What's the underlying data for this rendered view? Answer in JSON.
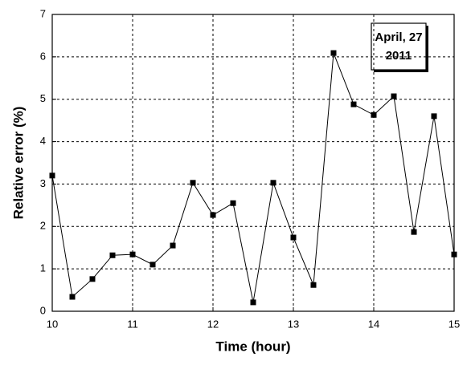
{
  "chart_data": {
    "type": "line",
    "xlabel": "Time (hour)",
    "ylabel": "Relative error (%)",
    "annotation": [
      "April, 27",
      "2011"
    ],
    "x": [
      10,
      10.25,
      10.5,
      10.75,
      11,
      11.25,
      11.5,
      11.75,
      12,
      12.25,
      12.5,
      12.75,
      13,
      13.25,
      13.5,
      13.75,
      14,
      14.25,
      14.5,
      14.75,
      15
    ],
    "series": [
      {
        "color": "#000000",
        "values": [
          3.2,
          0.34,
          0.76,
          1.32,
          1.34,
          1.1,
          1.55,
          3.03,
          2.27,
          2.55,
          0.21,
          3.03,
          1.74,
          0.62,
          6.09,
          4.88,
          4.63,
          5.07,
          1.87,
          4.6,
          1.34
        ]
      }
    ],
    "xlim": [
      10,
      15
    ],
    "xticks": [
      10,
      11,
      12,
      13,
      14,
      15
    ],
    "ylim": [
      0,
      7
    ],
    "yticks": [
      0,
      1,
      2,
      3,
      4,
      5,
      6,
      7
    ],
    "grid": true
  }
}
